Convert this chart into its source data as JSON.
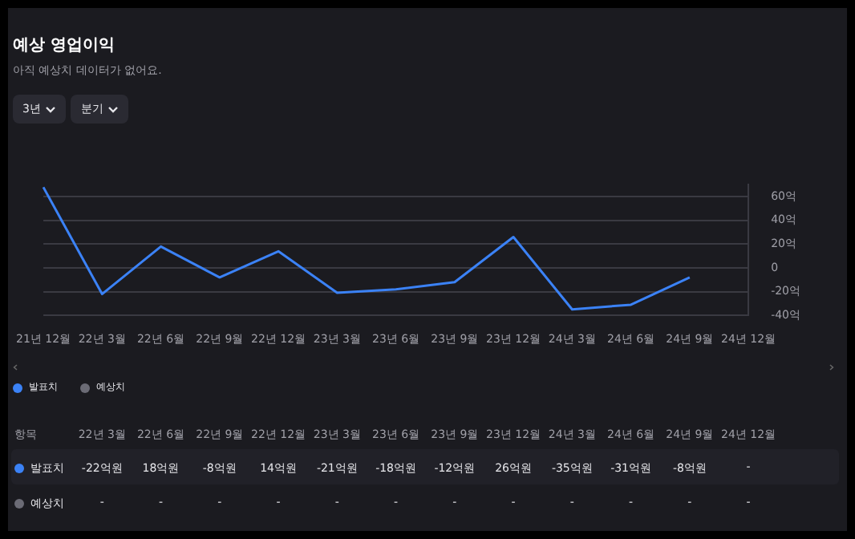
{
  "chart_data": {
    "type": "line",
    "title": "예상 영업이익",
    "subtitle": "아직 예상치 데이터가 없어요.",
    "annotations": [
      "3년",
      "분기",
      "항목"
    ],
    "categories": [
      "21년 12월",
      "22년 3월",
      "22년 6월",
      "22년 9월",
      "22년 12월",
      "23년 3월",
      "23년 6월",
      "23년 9월",
      "23년 12월",
      "24년 3월",
      "24년 6월",
      "24년 9월",
      "24년 12월"
    ],
    "series": [
      {
        "name": "발표치",
        "color": "#3b82f6",
        "values": [
          68,
          -22,
          18,
          -8,
          14,
          -21,
          -18,
          -12,
          26,
          -35,
          -31,
          -8,
          null
        ],
        "value_labels": [
          null,
          "-22억원",
          "18억원",
          "-8억원",
          "14억원",
          "-21억원",
          "-18억원",
          "-12억원",
          "26억원",
          "-35억원",
          "-31억원",
          "-8억원",
          "-"
        ]
      },
      {
        "name": "예상치",
        "color": "#6b6b75",
        "values": [
          null,
          null,
          null,
          null,
          null,
          null,
          null,
          null,
          null,
          null,
          null,
          null,
          null
        ],
        "value_labels": [
          null,
          "-",
          "-",
          "-",
          "-",
          "-",
          "-",
          "-",
          "-",
          "-",
          "-",
          "-",
          "-"
        ]
      }
    ],
    "ylim": [
      -40,
      70
    ],
    "yticks": [
      {
        "value": -40,
        "label": "-40억"
      },
      {
        "value": -20,
        "label": "-20억"
      },
      0,
      {
        "value": 20,
        "label": "20억"
      },
      {
        "value": 40,
        "label": "40억"
      },
      {
        "value": 60,
        "label": "60억"
      }
    ],
    "grid": "y",
    "legend": "bottom left",
    "marker": "none",
    "line_style": "solid"
  }
}
